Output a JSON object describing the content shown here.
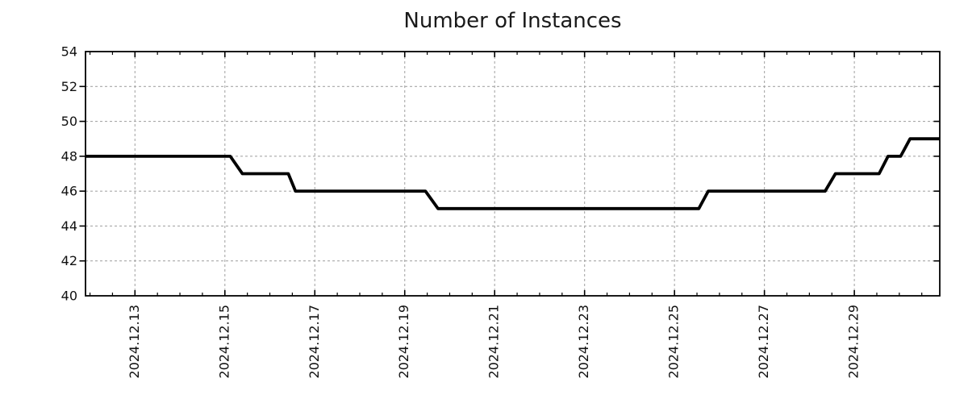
{
  "title": "Number of Instances",
  "chart_data": {
    "type": "line",
    "style": "step",
    "title": "Number of Instances",
    "xlabel": "",
    "ylabel": "",
    "x_unit": "date, December 2024 (fractional day of month)",
    "xlim": [
      11.9,
      30.9
    ],
    "ylim": [
      40,
      54
    ],
    "y_ticks": [
      40,
      42,
      44,
      46,
      48,
      50,
      52,
      54
    ],
    "x_ticks": [
      {
        "value": 13,
        "label": "2024.12.13"
      },
      {
        "value": 15,
        "label": "2024.12.15"
      },
      {
        "value": 17,
        "label": "2024.12.17"
      },
      {
        "value": 19,
        "label": "2024.12.19"
      },
      {
        "value": 21,
        "label": "2024.12.21"
      },
      {
        "value": 23,
        "label": "2024.12.23"
      },
      {
        "value": 25,
        "label": "2024.12.25"
      },
      {
        "value": 27,
        "label": "2024.12.27"
      },
      {
        "value": 29,
        "label": "2024.12.29"
      }
    ],
    "x_minor_tick_step": 0.5,
    "grid": true,
    "legend": "none",
    "series": [
      {
        "name": "instances",
        "color": "#000000",
        "points": [
          [
            11.9,
            48
          ],
          [
            15.12,
            48
          ],
          [
            15.39,
            47
          ],
          [
            16.41,
            47
          ],
          [
            16.57,
            46
          ],
          [
            19.46,
            46
          ],
          [
            19.74,
            45
          ],
          [
            25.54,
            45
          ],
          [
            25.75,
            46
          ],
          [
            28.35,
            46
          ],
          [
            28.58,
            47
          ],
          [
            29.55,
            47
          ],
          [
            29.75,
            48
          ],
          [
            30.03,
            48
          ],
          [
            30.24,
            49
          ],
          [
            30.9,
            49
          ]
        ]
      }
    ],
    "colors": {
      "line": "#000000",
      "grid": "#a8a8a8",
      "axis": "#000000",
      "text": "#111111",
      "background": "#ffffff"
    }
  }
}
